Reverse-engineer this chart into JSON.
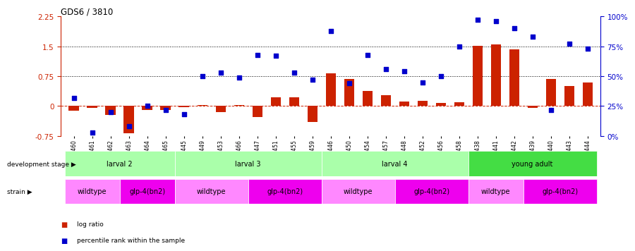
{
  "title": "GDS6 / 3810",
  "samples": [
    "GSM460",
    "GSM461",
    "GSM462",
    "GSM463",
    "GSM464",
    "GSM465",
    "GSM445",
    "GSM449",
    "GSM453",
    "GSM466",
    "GSM447",
    "GSM451",
    "GSM455",
    "GSM459",
    "GSM446",
    "GSM450",
    "GSM454",
    "GSM457",
    "GSM448",
    "GSM452",
    "GSM456",
    "GSM458",
    "GSM438",
    "GSM441",
    "GSM442",
    "GSM439",
    "GSM440",
    "GSM443",
    "GSM444"
  ],
  "log_ratio": [
    -0.12,
    -0.05,
    -0.22,
    -0.68,
    -0.1,
    -0.09,
    -0.03,
    0.02,
    -0.15,
    0.03,
    -0.28,
    0.22,
    0.22,
    -0.4,
    0.82,
    0.68,
    0.38,
    0.28,
    0.12,
    0.14,
    0.07,
    0.09,
    1.52,
    1.55,
    1.42,
    -0.05,
    0.68,
    0.5,
    0.6
  ],
  "percentile_pct": [
    32,
    3,
    20,
    8,
    25,
    22,
    18,
    50,
    53,
    49,
    68,
    67,
    53,
    47,
    88,
    44,
    68,
    56,
    54,
    45,
    50,
    75,
    97,
    96,
    90,
    83,
    22,
    77,
    73
  ],
  "dev_stage_groups": [
    {
      "label": "larval 2",
      "start": 0,
      "end": 6,
      "color": "#AAFFAA"
    },
    {
      "label": "larval 3",
      "start": 6,
      "end": 14,
      "color": "#AAFFAA"
    },
    {
      "label": "larval 4",
      "start": 14,
      "end": 22,
      "color": "#AAFFAA"
    },
    {
      "label": "young adult",
      "start": 22,
      "end": 29,
      "color": "#44DD44"
    }
  ],
  "strain_groups": [
    {
      "label": "wildtype",
      "start": 0,
      "end": 3,
      "color": "#FF88FF"
    },
    {
      "label": "glp-4(bn2)",
      "start": 3,
      "end": 6,
      "color": "#EE00EE"
    },
    {
      "label": "wildtype",
      "start": 6,
      "end": 10,
      "color": "#FF88FF"
    },
    {
      "label": "glp-4(bn2)",
      "start": 10,
      "end": 14,
      "color": "#EE00EE"
    },
    {
      "label": "wildtype",
      "start": 14,
      "end": 18,
      "color": "#FF88FF"
    },
    {
      "label": "glp-4(bn2)",
      "start": 18,
      "end": 22,
      "color": "#EE00EE"
    },
    {
      "label": "wildtype",
      "start": 22,
      "end": 25,
      "color": "#FF88FF"
    },
    {
      "label": "glp-4(bn2)",
      "start": 25,
      "end": 29,
      "color": "#EE00EE"
    }
  ],
  "bar_color": "#CC2200",
  "scatter_color": "#0000CC",
  "ylim_left": [
    -0.75,
    2.25
  ],
  "ylim_right": [
    0,
    100
  ],
  "yticks_left": [
    -0.75,
    0.0,
    0.75,
    1.5,
    2.25
  ],
  "yticks_right": [
    0,
    25,
    50,
    75,
    100
  ],
  "hlines": [
    0.75,
    1.5
  ],
  "hline_y0": 0.0
}
